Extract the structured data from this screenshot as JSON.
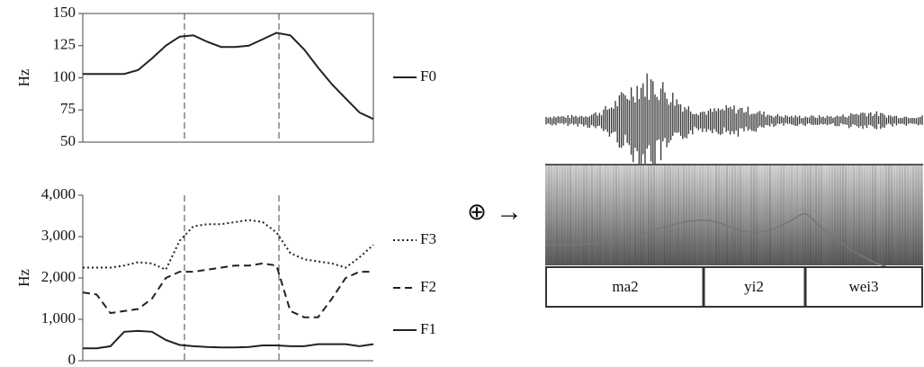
{
  "chart_data": [
    {
      "type": "line",
      "ylabel": "Hz",
      "ylim": [
        50,
        150
      ],
      "yticks": [
        50,
        75,
        100,
        125,
        150
      ],
      "legend": "right",
      "box": true,
      "series": [
        {
          "name": "F0",
          "color": "#222",
          "dash": "solid",
          "values": [
            103,
            103,
            103,
            103,
            106,
            115,
            125,
            132,
            133,
            128,
            124,
            124,
            125,
            130,
            135,
            133,
            122,
            108,
            95,
            84,
            73,
            68
          ]
        }
      ]
    },
    {
      "type": "line",
      "ylabel": "Hz",
      "ylim": [
        0,
        4000
      ],
      "legend": "right",
      "box": false,
      "yticks": [
        0,
        {
          "value": 1000,
          "label": "1,000"
        },
        {
          "value": 2000,
          "label": "2,000"
        },
        {
          "value": 3000,
          "label": "3,000"
        },
        {
          "value": 4000,
          "label": "4,000"
        }
      ],
      "series": [
        {
          "name": "F3",
          "color": "#222",
          "dash": "dotted",
          "values": [
            2250,
            2250,
            2250,
            2300,
            2380,
            2350,
            2200,
            2900,
            3250,
            3300,
            3300,
            3350,
            3400,
            3350,
            3100,
            2600,
            2450,
            2400,
            2350,
            2250,
            2500,
            2800
          ]
        },
        {
          "name": "F2",
          "color": "#222",
          "dash": "dashed",
          "values": [
            1650,
            1600,
            1150,
            1200,
            1250,
            1500,
            2000,
            2150,
            2150,
            2200,
            2250,
            2300,
            2300,
            2350,
            2300,
            1200,
            1050,
            1050,
            1500,
            2000,
            2150,
            2150
          ]
        },
        {
          "name": "F1",
          "color": "#222",
          "dash": "solid",
          "values": [
            300,
            300,
            350,
            700,
            720,
            700,
            500,
            380,
            350,
            330,
            320,
            320,
            330,
            370,
            370,
            350,
            350,
            400,
            400,
            400,
            350,
            400
          ]
        }
      ]
    }
  ],
  "operator": "⊕",
  "arrow": "→",
  "segments": [
    "ma2",
    "yi2",
    "wei3"
  ]
}
